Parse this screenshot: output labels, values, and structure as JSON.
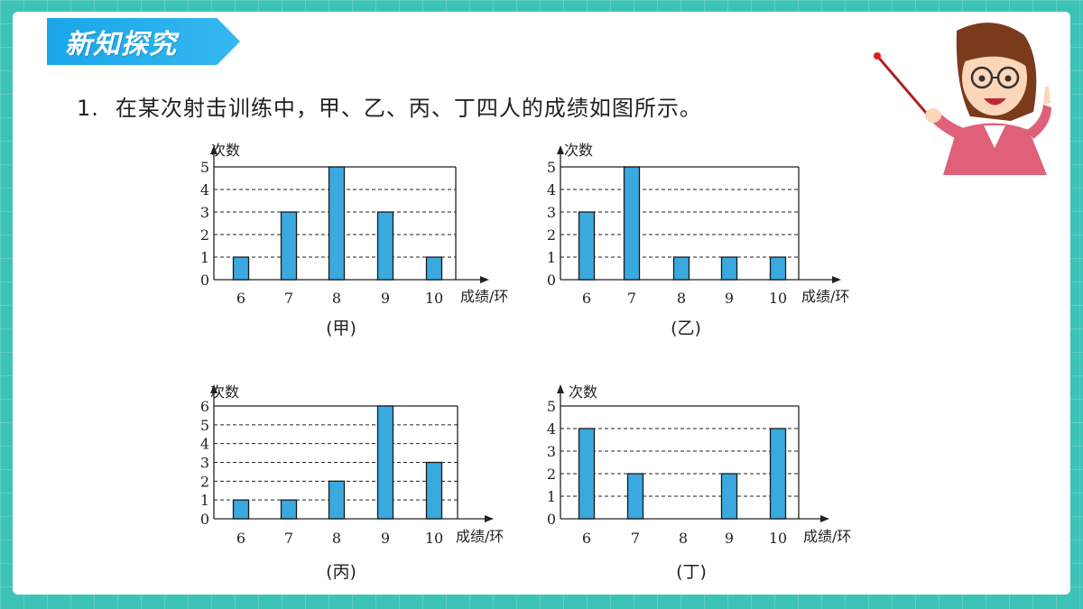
{
  "header": {
    "title": "新知探究"
  },
  "question": {
    "number": "1.",
    "text": "在某次射击训练中，甲、乙、丙、丁四人的成绩如图所示。"
  },
  "colors": {
    "bar": "#3aa9e0",
    "background": "#3cc3b6",
    "banner": "#1aa6e8"
  },
  "chart_data": [
    {
      "type": "bar",
      "title": "(甲)",
      "ylabel": "次数",
      "xlabel": "成绩/环",
      "categories": [
        "6",
        "7",
        "8",
        "9",
        "10"
      ],
      "values": [
        1,
        3,
        5,
        3,
        1
      ],
      "ylim": [
        0,
        5
      ],
      "yticks": [
        "0",
        "1",
        "2",
        "3",
        "4",
        "5"
      ],
      "grid": "dashed"
    },
    {
      "type": "bar",
      "title": "(乙)",
      "ylabel": "次数",
      "xlabel": "成绩/环",
      "categories": [
        "6",
        "7",
        "8",
        "9",
        "10"
      ],
      "values": [
        3,
        5,
        1,
        1,
        1
      ],
      "ylim": [
        0,
        5
      ],
      "yticks": [
        "0",
        "1",
        "2",
        "3",
        "4",
        "5"
      ],
      "grid": "dashed"
    },
    {
      "type": "bar",
      "title": "(丙)",
      "ylabel": "次数",
      "xlabel": "成绩/环",
      "categories": [
        "6",
        "7",
        "8",
        "9",
        "10"
      ],
      "values": [
        1,
        1,
        2,
        6,
        3
      ],
      "ylim": [
        0,
        6
      ],
      "yticks": [
        "0",
        "1",
        "2",
        "3",
        "4",
        "5",
        "6"
      ],
      "grid": "dashed"
    },
    {
      "type": "bar",
      "title": "(丁)",
      "ylabel": "次数",
      "xlabel": "成绩/环",
      "categories": [
        "6",
        "7",
        "8",
        "9",
        "10"
      ],
      "values": [
        4,
        2,
        0,
        2,
        4
      ],
      "ylim": [
        0,
        5
      ],
      "yticks": [
        "0",
        "1",
        "2",
        "3",
        "4",
        "5"
      ],
      "grid": "dashed"
    }
  ]
}
